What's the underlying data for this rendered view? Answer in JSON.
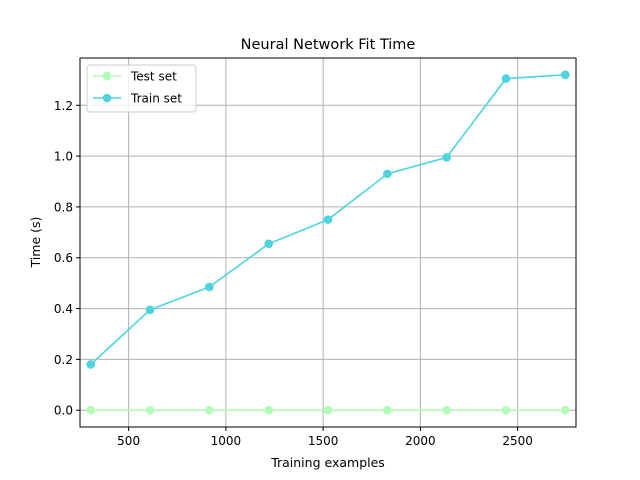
{
  "chart_data": {
    "type": "line",
    "title": "Neural Network Fit Time",
    "xlabel": "Training examples",
    "ylabel": "Time (s)",
    "xlim": [
      250,
      2800
    ],
    "ylim": [
      -0.066,
      1.386
    ],
    "xticks": [
      500,
      1000,
      1500,
      2000,
      2500
    ],
    "yticks": [
      0.0,
      0.2,
      0.4,
      0.6,
      0.8,
      1.0,
      1.2
    ],
    "grid": true,
    "legend": "upper-left",
    "x": [
      305,
      610,
      915,
      1220,
      1525,
      1830,
      2135,
      2440,
      2745
    ],
    "series": [
      {
        "name": "Test set",
        "color": "#b3fcb8",
        "values": [
          0.0,
          0.0,
          0.0,
          0.0,
          0.0,
          0.0,
          0.0,
          0.0,
          0.0
        ]
      },
      {
        "name": "Train set",
        "color": "#4dd4dd",
        "values": [
          0.18,
          0.395,
          0.485,
          0.655,
          0.75,
          0.93,
          0.995,
          1.305,
          1.32
        ]
      }
    ]
  }
}
